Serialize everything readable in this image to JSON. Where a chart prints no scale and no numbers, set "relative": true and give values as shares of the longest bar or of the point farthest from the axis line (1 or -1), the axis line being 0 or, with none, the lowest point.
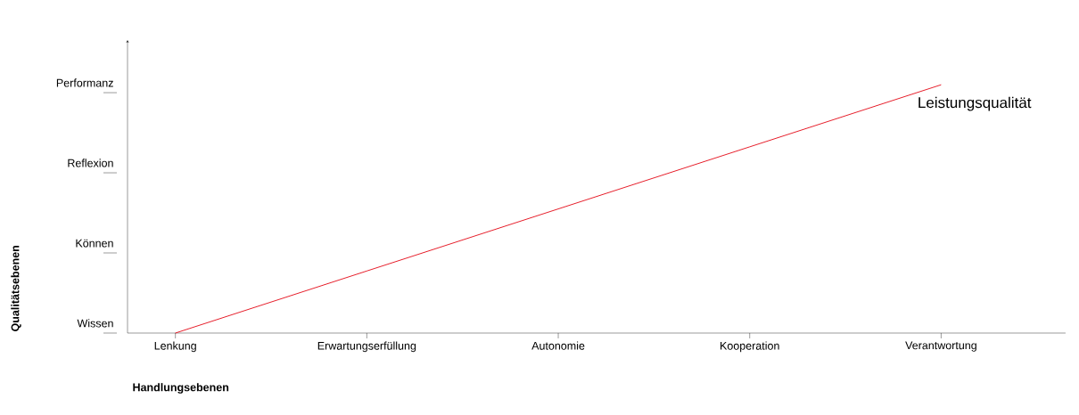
{
  "chart_data": {
    "type": "line",
    "xlabel": "Handlungsebenen",
    "relative": true,
    "categories": [
      "Lenkung",
      "Erwartungserfüllung",
      "Autonomie",
      "Kooperation",
      "Verantwortung"
    ],
    "series": [
      {
        "name": "Leistungsqualität",
        "color": "#e30613",
        "values": [
          0,
          0.25,
          0.5,
          0.75,
          1
        ]
      }
    ],
    "annotations": [
      "Wissen",
      "Können",
      "Reflexion",
      "Performanz",
      "Qualitätsebenen"
    ],
    "marker": "none",
    "line_style": "solid",
    "grid": false
  }
}
